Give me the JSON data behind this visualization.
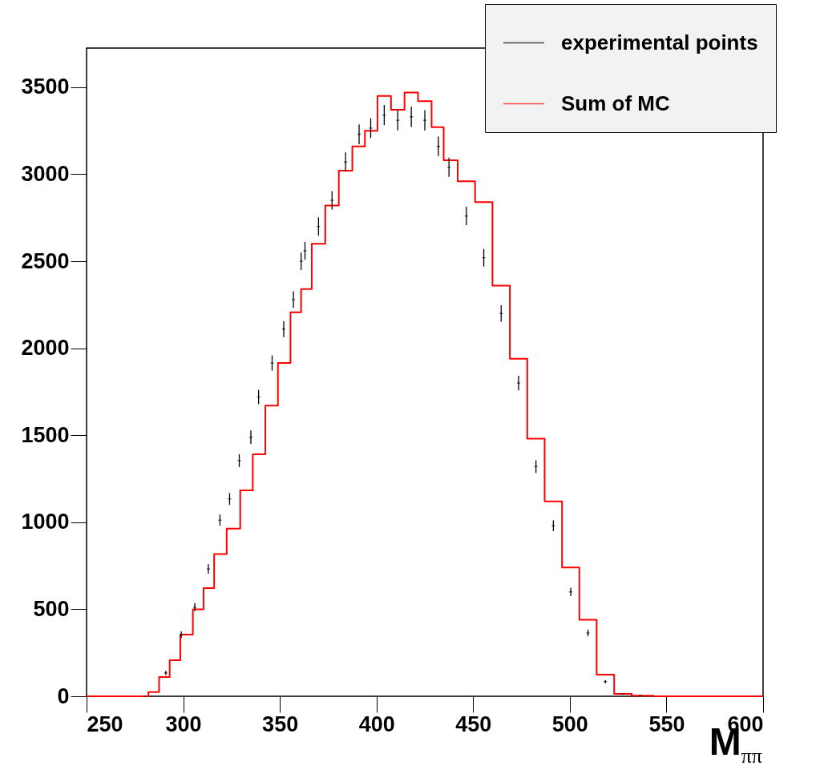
{
  "chart_data": {
    "type": "scatter",
    "xlabel": "M$_{ππ}$",
    "legend": "top right",
    "xlim": [
      250,
      600
    ],
    "xticks": [
      250,
      300,
      350,
      400,
      450,
      500,
      550,
      600
    ],
    "ylim": [
      0,
      3725
    ],
    "yticks": [
      0,
      500,
      1000,
      1500,
      2000,
      2500,
      3000,
      3500
    ],
    "series": [
      {
        "name": "experimental points",
        "color": "#000000",
        "x": [
          280,
          291,
          299,
          306,
          313,
          319,
          324,
          329,
          335,
          339,
          346,
          352,
          357,
          361,
          363,
          370,
          377,
          384,
          391,
          397,
          404,
          411,
          418,
          425,
          432,
          437.5,
          446.5,
          455.5,
          464.5,
          473.5,
          482.5,
          491.5,
          500.5,
          509.4,
          518.4,
          527.5,
          536.5
        ],
        "values": [
          0,
          134,
          354,
          512,
          732,
          1012,
          1134,
          1354,
          1488,
          1720,
          1915,
          2110,
          2280,
          2500,
          2560,
          2700,
          2850,
          3070,
          3230,
          3265,
          3340,
          3310,
          3330,
          3310,
          3160,
          3040,
          2760,
          2520,
          2200,
          1800,
          1320,
          980,
          600,
          364,
          84,
          14,
          4
        ],
        "errors": [
          null,
          12,
          19,
          23,
          27,
          32,
          34,
          37,
          39,
          41,
          44,
          46,
          48,
          50,
          51,
          52,
          53,
          55,
          57,
          57,
          58,
          58,
          58,
          58,
          56,
          55,
          53,
          50,
          47,
          42,
          36,
          31,
          24,
          19,
          9,
          null,
          null
        ]
      },
      {
        "name": "Sum of MC",
        "color": "#ff0000",
        "type": "step",
        "x": [
          250,
          280,
          284,
          291,
          295,
          302,
          308,
          313,
          319,
          326,
          333,
          339,
          346,
          352,
          359,
          363,
          370,
          377,
          384,
          391,
          397,
          404,
          411,
          418,
          425,
          432,
          437.5,
          446.5,
          455.5,
          464.5,
          473.5,
          482.5,
          491.5,
          500.5,
          509.4,
          518.4,
          527.5,
          536.5,
          550,
          600
        ],
        "values": [
          0,
          0,
          24,
          110,
          207,
          354,
          500,
          622,
          817,
          963,
          1183,
          1390,
          1670,
          1915,
          2207,
          2340,
          2600,
          2820,
          3020,
          3160,
          3250,
          3450,
          3370,
          3470,
          3420,
          3270,
          3080,
          2960,
          2840,
          2360,
          1940,
          1480,
          1120,
          740,
          440,
          124,
          14,
          4,
          0,
          0
        ]
      }
    ]
  }
}
